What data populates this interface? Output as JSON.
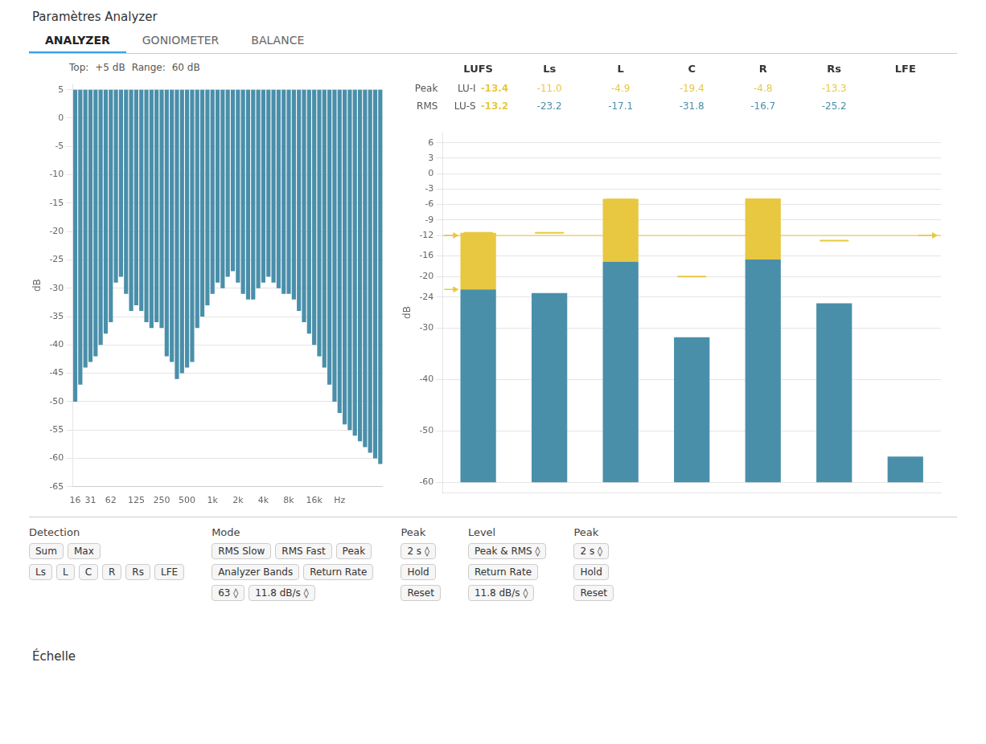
{
  "chart_data": [
    {
      "type": "bar",
      "ylabel": "dB",
      "categories": [
        "16",
        null,
        null,
        "31",
        null,
        null,
        null,
        "62",
        null,
        null,
        null,
        null,
        "125",
        null,
        null,
        null,
        null,
        "250",
        null,
        null,
        null,
        null,
        "500",
        null,
        null,
        null,
        null,
        "1k",
        null,
        null,
        null,
        null,
        "2k",
        null,
        null,
        null,
        null,
        "4k",
        null,
        null,
        null,
        null,
        "8k",
        null,
        null,
        null,
        null,
        "16k",
        null,
        null,
        null,
        null,
        "Hz",
        null,
        null,
        null,
        null,
        null,
        null,
        null,
        null
      ],
      "values": [
        -50,
        -47,
        -44,
        -43,
        -42,
        -40,
        -38,
        -36,
        -29,
        -28,
        -31,
        -34,
        -33,
        -34,
        -36,
        -37,
        -36,
        -37,
        -42,
        -43,
        -46,
        -45,
        -44,
        -43,
        -37,
        -35,
        -33,
        -31,
        -29,
        -30,
        -28,
        -27,
        -29,
        -31,
        -32,
        -32,
        -30,
        -29,
        -28,
        -29,
        -30,
        -31,
        -31,
        -32,
        -34,
        -36,
        -38,
        -40,
        -42,
        -44,
        -47,
        -50,
        -52,
        -54,
        -55,
        -56,
        -57,
        -58,
        -59,
        -60,
        -61
      ],
      "bar_base": 5,
      "color": "#4a8faa",
      "ylim": [
        -65,
        6
      ],
      "yticks": [
        5,
        0,
        -5,
        -10,
        -15,
        -20,
        -25,
        -30,
        -35,
        -40,
        -45,
        -50,
        -55,
        -60,
        -65
      ],
      "grid": true,
      "annotations": {
        "top": "Paramètres Analyzer",
        "tabs": [
          "ANALYZER",
          "GONIOMETER",
          "BALANCE"
        ],
        "info": [
          "Top:",
          "+5 dB",
          "Range:",
          "60 dB"
        ],
        "panel": [
          [
            [
              "Detection"
            ],
            [
              "Sum",
              "Max"
            ],
            [
              "Ls",
              "L",
              "C",
              "R",
              "Rs",
              "LFE"
            ]
          ],
          [
            [
              "Mode"
            ],
            [
              "RMS Slow",
              "RMS Fast",
              "Peak"
            ],
            [
              "Analyzer Bands",
              "Return Rate"
            ],
            [
              "63 ◊",
              "11.8 dB/s ◊"
            ]
          ],
          [
            [
              "Peak"
            ],
            [
              "2 s ◊"
            ],
            [
              "Hold"
            ],
            [
              "Reset"
            ]
          ],
          [
            [
              "Level"
            ],
            [
              "Peak & RMS ◊"
            ],
            [
              "Return Rate"
            ],
            [
              "11.8 dB/s ◊"
            ]
          ],
          [
            [
              "Peak"
            ],
            [
              "2 s ◊"
            ],
            [
              "Hold"
            ],
            [
              "Reset"
            ]
          ]
        ],
        "bottom": "Échelle"
      }
    },
    {
      "type": "bar",
      "ylabel": "dB",
      "categories": [
        "LUFS",
        "Ls",
        "L",
        "C",
        "R",
        "Rs",
        "LFE"
      ],
      "series": [
        {
          "color": "#4a8faa",
          "values": [
            -22.5,
            -23.2,
            -17.1,
            -31.8,
            -16.7,
            -25.2,
            -55
          ]
        },
        {
          "color": "#e8c840",
          "values": [
            -11.5,
            null,
            -4.9,
            null,
            -4.8,
            null,
            null
          ]
        },
        {
          "type": "scatter",
          "marker": "line",
          "color": "#e8c840",
          "values": [
            -11.5,
            -11.5,
            -5.0,
            -20.0,
            -5.0,
            -13.0,
            null
          ]
        }
      ],
      "bar_base": -60,
      "ylim": [
        -62,
        8
      ],
      "yticks": [
        6,
        3,
        0,
        -3,
        -6,
        -9,
        -12,
        -16,
        -20,
        -24,
        -30,
        -40,
        -50,
        -60
      ],
      "grid": true,
      "tick_labels": "y",
      "ref_line": {
        "value": -12.0,
        "color": "#e8c840"
      },
      "arrows": {
        "values": [
          -22.5,
          -12.0
        ],
        "color": "#e8c840"
      },
      "annotations": {
        "loudness": [
          [
            "LU-I",
            "-13.4"
          ],
          [
            "LU-S",
            "-13.2"
          ]
        ],
        "row_labels": [
          "Peak",
          "RMS"
        ],
        "peak_row": [
          null,
          "-11.0",
          "-4.9",
          "-19.4",
          "-4.8",
          "-13.3",
          null
        ],
        "rms_row": [
          null,
          "-23.2",
          "-17.1",
          "-31.8",
          "-16.7",
          "-25.2",
          null
        ]
      }
    }
  ]
}
